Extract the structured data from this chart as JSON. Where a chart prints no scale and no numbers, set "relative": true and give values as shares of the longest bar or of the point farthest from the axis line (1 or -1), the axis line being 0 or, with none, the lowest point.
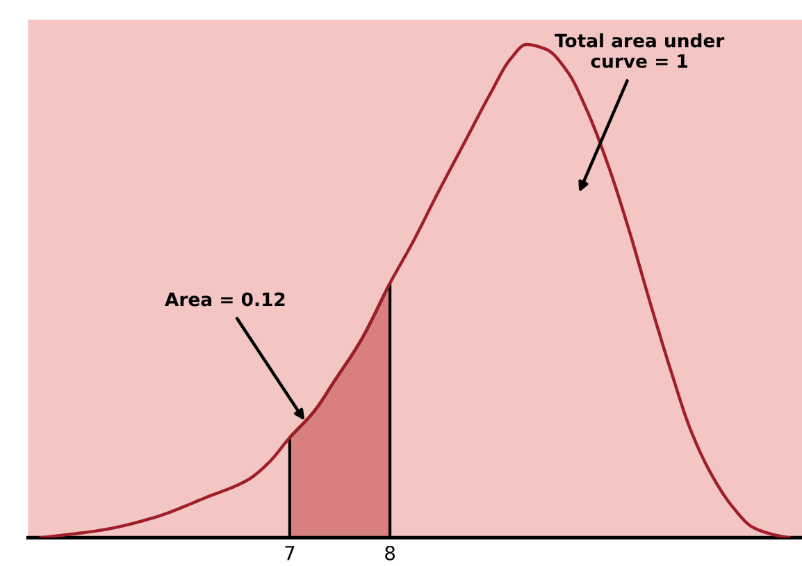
{
  "chart_data": {
    "type": "line",
    "relative": true,
    "x": [
      4.52,
      5.14,
      5.65,
      6.17,
      6.58,
      6.79,
      7.0,
      7.25,
      7.45,
      7.71,
      8.0,
      8.23,
      8.48,
      8.74,
      9.0,
      9.2,
      9.36,
      9.56,
      9.77,
      9.97,
      10.18,
      10.39,
      10.59,
      10.8,
      11.0,
      11.21,
      11.42,
      11.62,
      11.83,
      11.98
    ],
    "series": [
      {
        "color": "#a01e28",
        "values": [
          0.0,
          0.016,
          0.041,
          0.082,
          0.117,
          0.152,
          0.203,
          0.258,
          0.319,
          0.4,
          0.516,
          0.6,
          0.7,
          0.8,
          0.9,
          0.97,
          1.0,
          0.99,
          0.945,
          0.864,
          0.753,
          0.62,
          0.48,
          0.34,
          0.218,
          0.127,
          0.062,
          0.021,
          0.006,
          0.0
        ]
      },
      {
        "type": "area",
        "color": "#d88080",
        "x": [
          7.0,
          7.25,
          7.45,
          7.71,
          8.0
        ],
        "values": [
          0.203,
          0.258,
          0.319,
          0.4,
          0.516
        ]
      }
    ],
    "xlim": [
      4.39,
      12.11
    ],
    "xticks": [
      7,
      8
    ],
    "tick_labels": "x",
    "grid": false,
    "annotations": [
      "Area = 0.12",
      "Total area under\ncurve = 1"
    ]
  }
}
